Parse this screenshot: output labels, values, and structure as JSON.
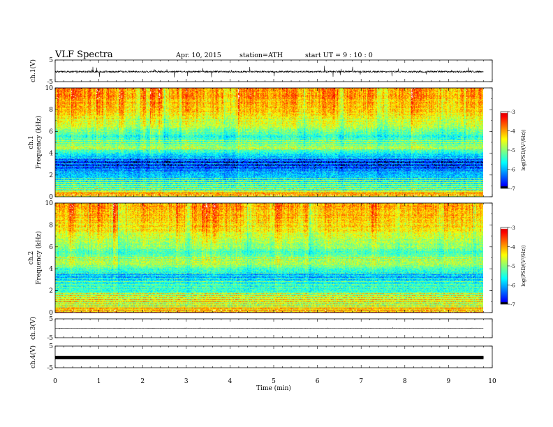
{
  "header": {
    "title": "VLF  Spectra",
    "date": "Apr. 10, 2015",
    "station": "station=ATH",
    "start": "start  UT  =   9  : 10 : 0"
  },
  "chart_data": {
    "type": "heatmap",
    "xlabel": "Time  (min)",
    "xlim": [
      0,
      10
    ],
    "x_ticks": [
      0,
      1,
      2,
      3,
      4,
      5,
      6,
      7,
      8,
      9,
      10
    ],
    "data_end_min": 9.8,
    "panels": [
      {
        "id": "ch1-waveform",
        "type": "line",
        "ylabel": "ch.1(V)",
        "ylim": [
          -5,
          5
        ],
        "y_ticks": [
          5,
          -5
        ],
        "baseline": -0.4,
        "noise_amplitude": 0.8,
        "spike_amplitude": 2.8
      },
      {
        "id": "ch1-spectrogram",
        "type": "heatmap",
        "ylabel_top": "ch.1",
        "ylabel": "Frequency  (kHz)",
        "ylim": [
          0,
          10
        ],
        "y_ticks": [
          0,
          2,
          4,
          6,
          8,
          10
        ],
        "colorbar": {
          "label": "log(PSD/(V²/Hz))",
          "range": [
            -7,
            -3
          ],
          "ticks": [
            "-3",
            "-4",
            "-5",
            "-6",
            "-7"
          ]
        },
        "value_profile": [
          {
            "f": 0.0,
            "v": -4.7
          },
          {
            "f": 0.3,
            "v": -4.0
          },
          {
            "f": 0.6,
            "v": -5.2
          },
          {
            "f": 1.0,
            "v": -5.6
          },
          {
            "f": 2.0,
            "v": -5.9
          },
          {
            "f": 2.6,
            "v": -6.6
          },
          {
            "f": 3.3,
            "v": -6.7
          },
          {
            "f": 3.8,
            "v": -5.8
          },
          {
            "f": 4.5,
            "v": -5.0
          },
          {
            "f": 5.5,
            "v": -5.5
          },
          {
            "f": 6.5,
            "v": -4.8
          },
          {
            "f": 8.0,
            "v": -4.2
          },
          {
            "f": 10.0,
            "v": -3.9
          }
        ]
      },
      {
        "id": "ch2-spectrogram",
        "type": "heatmap",
        "ylabel_top": "ch.2",
        "ylabel": "Frequency  (kHz)",
        "ylim": [
          0,
          10
        ],
        "y_ticks": [
          0,
          2,
          4,
          6,
          8,
          10
        ],
        "colorbar": {
          "label": "log(PSD/(V²/Hz))",
          "range": [
            -7,
            -3
          ],
          "ticks": [
            "-3",
            "-4",
            "-5",
            "-6",
            "-7"
          ]
        },
        "value_profile": [
          {
            "f": 0.0,
            "v": -4.6
          },
          {
            "f": 0.3,
            "v": -4.2
          },
          {
            "f": 0.7,
            "v": -5.0
          },
          {
            "f": 1.2,
            "v": -4.8
          },
          {
            "f": 2.0,
            "v": -5.4
          },
          {
            "f": 2.8,
            "v": -5.6
          },
          {
            "f": 3.3,
            "v": -6.2
          },
          {
            "f": 3.8,
            "v": -5.5
          },
          {
            "f": 4.5,
            "v": -4.9
          },
          {
            "f": 5.5,
            "v": -5.3
          },
          {
            "f": 6.5,
            "v": -4.8
          },
          {
            "f": 8.0,
            "v": -4.3
          },
          {
            "f": 10.0,
            "v": -4.0
          }
        ]
      },
      {
        "id": "ch3-waveform",
        "type": "line",
        "ylabel": "ch.3(V)",
        "ylim": [
          -5,
          5
        ],
        "y_ticks": [
          5,
          -5
        ],
        "baseline": 0.0,
        "noise_amplitude": 0.05,
        "spike_amplitude": 0.3
      },
      {
        "id": "ch4-waveform",
        "type": "line",
        "ylabel": "ch.4(V)",
        "ylim": [
          -5,
          5
        ],
        "y_ticks": [
          5,
          -5
        ],
        "baseline": -0.3,
        "noise_amplitude": 0.35,
        "spike_amplitude": 0.0
      }
    ]
  }
}
